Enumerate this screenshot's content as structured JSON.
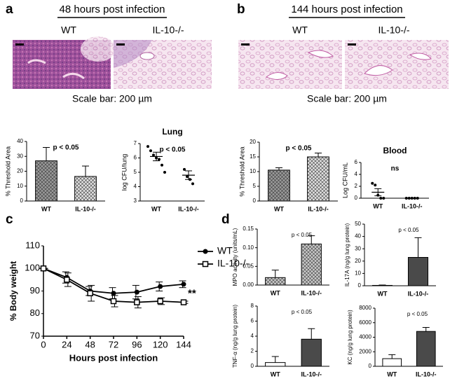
{
  "figure": {
    "panels": [
      {
        "label": "a",
        "heading": "48 hours post infection",
        "columns": [
          "WT",
          "IL-10-/-"
        ],
        "scale_bar": "Scale bar: 200 µm"
      },
      {
        "label": "b",
        "heading": "144 hours post infection",
        "columns": [
          "WT",
          "IL-10-/-"
        ],
        "scale_bar": "Scale bar: 200 µm"
      }
    ],
    "panel_labels": [
      "c",
      "d"
    ]
  },
  "chart_data": [
    {
      "type": "bar",
      "ylabel": "% Threshold Area",
      "categories": [
        "WT",
        "IL-10-/-"
      ],
      "values": [
        27,
        16.5
      ],
      "errors": [
        9,
        7
      ],
      "colors": [
        "#9a9a9a",
        "#e0e0e0"
      ],
      "hatch": true,
      "ylim": [
        0,
        40
      ],
      "yticks": [
        0,
        10,
        20,
        30,
        40
      ],
      "annotation": "p < 0.05"
    },
    {
      "type": "dot",
      "title": "Lung",
      "ylabel": "log CFU/lung",
      "categories": [
        "WT",
        "IL-10-/-"
      ],
      "points": [
        [
          6.8,
          6.5,
          6.2,
          6.0,
          5.9,
          5.5,
          5.0
        ],
        [
          5.2,
          4.7,
          4.5,
          4.2
        ]
      ],
      "values": [
        6.1,
        4.8
      ],
      "errors": [
        0.3,
        0.3
      ],
      "color": "#000000",
      "ylim": [
        3,
        7
      ],
      "yticks": [
        3,
        4,
        5,
        6,
        7
      ],
      "annotation": "p < 0.05"
    },
    {
      "type": "bar",
      "ylabel": "% Threshold Area",
      "categories": [
        "WT",
        "IL-10-/-"
      ],
      "values": [
        10.5,
        15
      ],
      "errors": [
        0.8,
        1.3
      ],
      "colors": [
        "#9a9a9a",
        "#e0e0e0"
      ],
      "hatch": true,
      "ylim": [
        0,
        20
      ],
      "yticks": [
        0,
        5,
        10,
        15,
        20
      ],
      "annotation": "p < 0.05"
    },
    {
      "type": "dot",
      "title": "Blood",
      "ylabel": "Log CFU/mL",
      "categories": [
        "WT",
        "IL-10-/-"
      ],
      "points": [
        [
          2.5,
          2.2,
          0.5,
          0,
          0
        ],
        [
          0,
          0,
          0,
          0,
          0
        ]
      ],
      "values": [
        1.0,
        0
      ],
      "errors": [
        0.6,
        0
      ],
      "color": "#000000",
      "ylim": [
        0,
        6
      ],
      "yticks": [
        0,
        2,
        4,
        6
      ],
      "annotation": "ns"
    },
    {
      "type": "line",
      "ylabel": "% Body weight",
      "xlabel": "Hours post infection",
      "x": [
        0,
        24,
        48,
        72,
        96,
        120,
        144
      ],
      "xlim": [
        0,
        144
      ],
      "xticks": [
        0,
        24,
        48,
        72,
        96,
        120,
        144
      ],
      "ylim": [
        70,
        110
      ],
      "yticks": [
        70,
        80,
        90,
        100,
        110
      ],
      "legend": "right",
      "series": [
        {
          "name": "WT",
          "color": "#000000",
          "marker": "circle",
          "values": [
            100,
            96,
            90,
            89,
            89.5,
            92,
            93
          ],
          "errors": [
            0,
            2.5,
            2,
            2.5,
            3,
            2,
            1.5
          ]
        },
        {
          "name": "IL-10-/-",
          "color": "#000000",
          "marker": "square",
          "values": [
            100,
            95,
            89,
            85.5,
            85,
            85.5,
            85
          ],
          "errors": [
            0,
            3,
            3.5,
            2.5,
            2.5,
            1.5,
            0.5
          ]
        }
      ],
      "annotation": "**"
    },
    {
      "type": "bar",
      "ylabel": "MPO activity (units/mL)",
      "categories": [
        "WT",
        "IL-10-/-"
      ],
      "values": [
        0.02,
        0.11
      ],
      "errors": [
        0.02,
        0.022
      ],
      "colors": [
        "#c8c8c8",
        "#c8c8c8"
      ],
      "hatch": true,
      "ylim": [
        0,
        0.15
      ],
      "yticks": [
        {
          "value": 0,
          "label": "0.00"
        },
        0.05,
        {
          "value": 0.1,
          "label": "0.10"
        },
        0.15
      ],
      "annotation": "p < 0.05"
    },
    {
      "type": "bar",
      "ylabel": "IL-17A (ng/g lung protein)",
      "categories": [
        "WT",
        "IL-10-/-"
      ],
      "values": [
        0.3,
        23
      ],
      "errors": [
        0.3,
        16
      ],
      "colors": [
        "#ffffff",
        "#4a4a4a"
      ],
      "hatch": false,
      "ylim": [
        0,
        50
      ],
      "yticks": [
        0,
        10,
        20,
        30,
        40,
        50
      ],
      "annotation": "p < 0.05"
    },
    {
      "type": "bar",
      "ylabel": "TNF-α (ng/g lung protein)",
      "categories": [
        "WT",
        "IL-10-/-"
      ],
      "values": [
        0.5,
        3.6
      ],
      "errors": [
        0.8,
        1.4
      ],
      "colors": [
        "#ffffff",
        "#4a4a4a"
      ],
      "hatch": false,
      "ylim": [
        0,
        8
      ],
      "yticks": [
        0,
        2,
        4,
        6,
        8
      ],
      "annotation": "p < 0.05"
    },
    {
      "type": "bar",
      "ylabel": "KC (ng/g lung protein)",
      "categories": [
        "WT",
        "IL-10-/-"
      ],
      "values": [
        1050,
        4800
      ],
      "errors": [
        550,
        550
      ],
      "colors": [
        "#ffffff",
        "#4a4a4a"
      ],
      "hatch": false,
      "ylim": [
        0,
        8000
      ],
      "yticks": [
        0,
        2000,
        4000,
        6000,
        8000
      ],
      "annotation": "p < 0.05"
    }
  ]
}
